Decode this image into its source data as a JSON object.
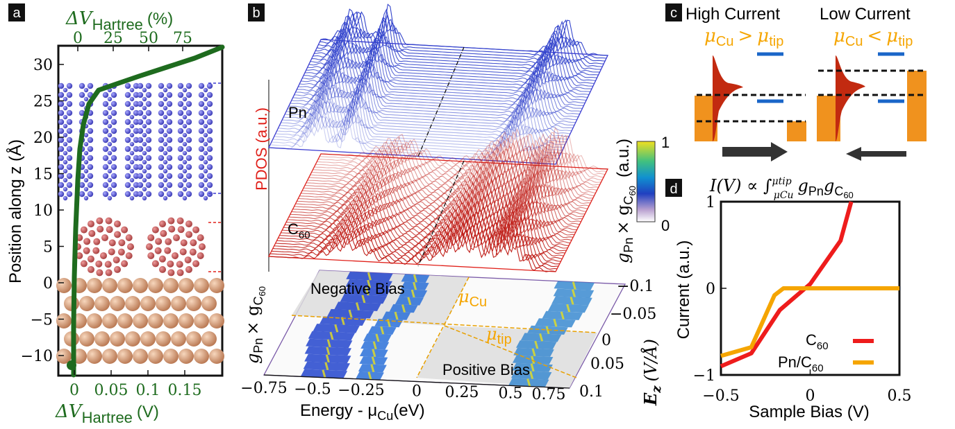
{
  "panel_labels": {
    "a": "a",
    "b": "b",
    "c": "c",
    "d": "d"
  },
  "colors": {
    "green": "#1e6b1e",
    "blue": "#3a3ad0",
    "red_pdos": "#e0201a",
    "orange": "#f5a500",
    "copper": "#d9a07a",
    "fullerene": "#c85a5a",
    "pentacene": "#6060d8"
  },
  "panel_a": {
    "top_axis_label": "ΔV",
    "top_axis_sub": "Hartree",
    "top_axis_unit": "(%)",
    "top_ticks": [
      "0",
      "25",
      "50",
      "75"
    ],
    "bottom_axis_label": "ΔV",
    "bottom_axis_sub": "Hartree",
    "bottom_axis_unit": "(V)",
    "bottom_ticks": [
      "0",
      "0.05",
      "0.1",
      "0.15"
    ],
    "y_axis_label": "Position along z (Å)",
    "y_ticks": [
      "30",
      "25",
      "20",
      "15",
      "10",
      "5",
      "0",
      "−5",
      "−10"
    ]
  },
  "panel_b": {
    "pdos_label": "PDOS (a.u.)",
    "pn_label": "Pn",
    "c60_label": "C",
    "c60_sub": "60",
    "negative_bias": "Negative Bias",
    "positive_bias": "Positive Bias",
    "mu_cu": "μ",
    "mu_cu_sub": "Cu",
    "mu_tip": "μ",
    "mu_tip_sub": "tip",
    "x_axis_label": "Energy - μ",
    "x_axis_sub": "Cu",
    "x_axis_unit": "(eV)",
    "x_ticks": [
      "−0.75",
      "−0.5",
      "−0.25",
      "0",
      "0.25",
      "0.5",
      "0.75"
    ],
    "ez_label": "E",
    "ez_sub": "z",
    "ez_unit": "(V/Å)",
    "ez_ticks": [
      "−0.1",
      "−0.05",
      "0",
      "0.05",
      "0.1"
    ],
    "g_label_left": "g",
    "g_sub_pn": "Pn",
    "g_times": "× g",
    "g_sub_c60": "C",
    "g_sub_c60_n": "60",
    "colorbar_label_unit": "(a.u.)",
    "colorbar_max": "1",
    "colorbar_min": "0"
  },
  "panel_c": {
    "left_title": "High Current",
    "right_title": "Low Current",
    "left_mu": "μ",
    "left_mu_cu": "Cu",
    "left_op": ">",
    "left_mu_tip": "tip",
    "right_mu": "μ",
    "right_mu_cu": "Cu",
    "right_op": "<",
    "right_mu_tip": "tip"
  },
  "panel_d": {
    "title_prefix": "I(V) ∝ ∫",
    "title_upper": "μtip",
    "title_lower": "μCu",
    "title_g1": "g",
    "title_g1_sub": "Pn",
    "title_g2": "g",
    "title_g2_sub": "C",
    "title_g2_subsub": "60",
    "y_axis_label": "Current (a.u.)",
    "x_axis_label": "Sample Bias (V)",
    "x_ticks": [
      "−0.5",
      "0",
      "0.5"
    ],
    "y_ticks": [
      "1",
      "0",
      "−1"
    ],
    "legend_c60": "C",
    "legend_c60_sub": "60",
    "legend_pn": "Pn/C",
    "legend_pn_sub": "60"
  },
  "chart_data": {
    "type": "line",
    "xlabel": "Sample Bias (V)",
    "ylabel": "Current (a.u.)",
    "xlim": [
      -0.5,
      0.5
    ],
    "ylim": [
      -1,
      1
    ],
    "grid": false,
    "legend": "bottom-right",
    "series": [
      {
        "name": "C60",
        "color": "#ee1c1c",
        "x": [
          -0.5,
          -0.33,
          -0.17,
          0.0,
          0.17,
          0.23
        ],
        "y": [
          -0.9,
          -0.75,
          -0.25,
          0.05,
          0.55,
          1.0
        ]
      },
      {
        "name": "Pn/C60",
        "color": "#f5a500",
        "x": [
          -0.5,
          -0.33,
          -0.2,
          -0.15,
          0.0,
          0.5
        ],
        "y": [
          -0.78,
          -0.68,
          -0.08,
          0.0,
          0.0,
          0.0
        ]
      }
    ]
  }
}
